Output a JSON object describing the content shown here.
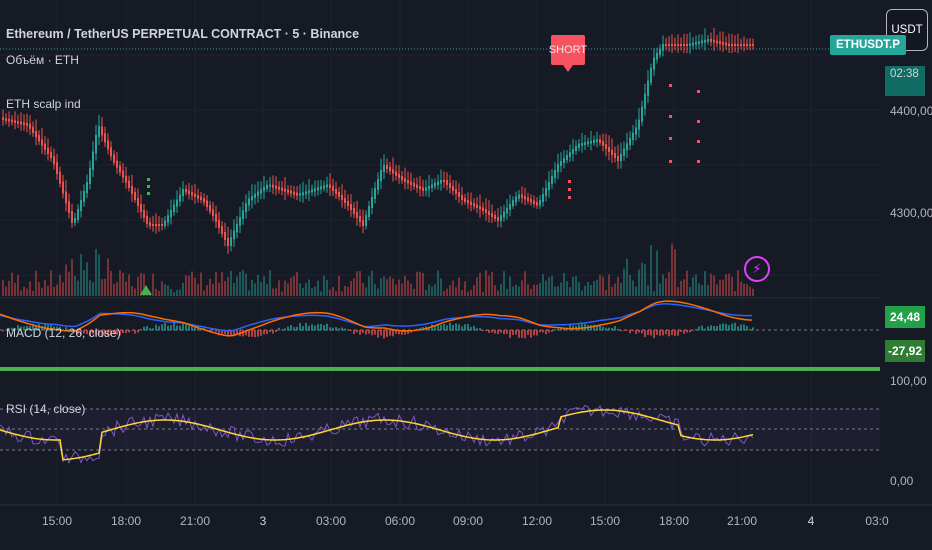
{
  "header": {
    "title": "Ethereum / TetherUS PERPETUAL CONTRACT · 5 · Binance",
    "volume_label": "Объём · ETH",
    "indicator_label": "ETH scalp ind",
    "currency_button": "USDT"
  },
  "price_scale": {
    "symbol_tag": "ETHUSDT.P",
    "countdown": "02:38",
    "ticks": [
      "4400,00",
      "4300,00"
    ]
  },
  "macd": {
    "label": "MACD (12, 26, close)",
    "value_pos": "24,48",
    "value_neg": "-27,92"
  },
  "rsi": {
    "label": "RSI (14, close)",
    "ticks": [
      "100,00",
      "0,00"
    ]
  },
  "signal": {
    "short_text": "SHORT"
  },
  "time_axis": [
    "15:00",
    "18:00",
    "21:00",
    "3",
    "03:00",
    "06:00",
    "09:00",
    "12:00",
    "15:00",
    "18:00",
    "21:00",
    "4",
    "03:0"
  ],
  "colors": {
    "background": "#161a25",
    "up": "#26a69a",
    "down": "#ef5350",
    "macd_line": "#2962ff",
    "signal_line": "#ff6d00",
    "rsi_line": "#7e57c2",
    "rsi_ma": "#fdd835",
    "short_marker": "#f7525f",
    "separator": "#4caf50"
  },
  "icons": {
    "alert": "lightning-icon"
  }
}
